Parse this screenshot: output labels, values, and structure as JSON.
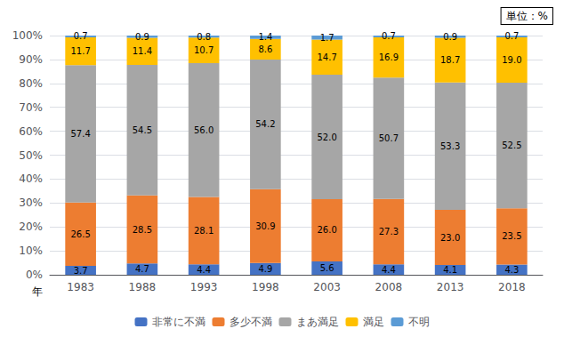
{
  "chart_data": {
    "type": "bar",
    "stacked": true,
    "categories": [
      "1983",
      "1988",
      "1993",
      "1998",
      "2003",
      "2008",
      "2013",
      "2018"
    ],
    "series": [
      {
        "name": "非常に不満",
        "color": "#4472C4",
        "values": [
          3.7,
          4.7,
          4.4,
          4.9,
          5.6,
          4.4,
          4.1,
          4.3
        ]
      },
      {
        "name": "多少不満",
        "color": "#ED7D31",
        "values": [
          26.5,
          28.5,
          28.1,
          30.9,
          26.0,
          27.3,
          23.0,
          23.5
        ],
        "value_labels": [
          "26.5",
          "28.5",
          "28.1",
          "30.9",
          "26.0",
          "27.3",
          "23.0",
          "23.5"
        ]
      },
      {
        "name": "まあ満足",
        "color": "#A6A6A6",
        "values": [
          57.4,
          54.5,
          56.0,
          54.2,
          52.0,
          50.7,
          53.3,
          52.5
        ],
        "value_labels": [
          "57.4",
          "54.5",
          "56.0",
          "54.2",
          "52.0",
          "50.7",
          "53.3",
          "52.5"
        ]
      },
      {
        "name": "満足",
        "color": "#FFC000",
        "values": [
          11.7,
          11.4,
          10.7,
          8.6,
          14.7,
          16.9,
          18.7,
          19.0
        ],
        "value_labels": [
          "11.7",
          "11.4",
          "10.7",
          "8.6",
          "14.7",
          "16.9",
          "18.7",
          "19.0"
        ]
      },
      {
        "name": "不明",
        "color": "#5B9BD5",
        "values": [
          0.7,
          0.9,
          0.8,
          1.4,
          1.7,
          0.7,
          0.9,
          0.7
        ]
      }
    ],
    "ylim": [
      0,
      100
    ],
    "yticks": [
      {
        "value": 0,
        "label": "0%"
      },
      {
        "value": 10,
        "label": "10%"
      },
      {
        "value": 20,
        "label": "20%"
      },
      {
        "value": 30,
        "label": "30%"
      },
      {
        "value": 40,
        "label": "40%"
      },
      {
        "value": 50,
        "label": "50%"
      },
      {
        "value": 60,
        "label": "60%"
      },
      {
        "value": 70,
        "label": "70%"
      },
      {
        "value": 80,
        "label": "80%"
      },
      {
        "value": 90,
        "label": "90%"
      },
      {
        "value": 100,
        "label": "100%"
      }
    ],
    "grid": true,
    "legend": "bottom",
    "data_labels": true,
    "annotations": [
      "単位：%",
      "年"
    ]
  }
}
